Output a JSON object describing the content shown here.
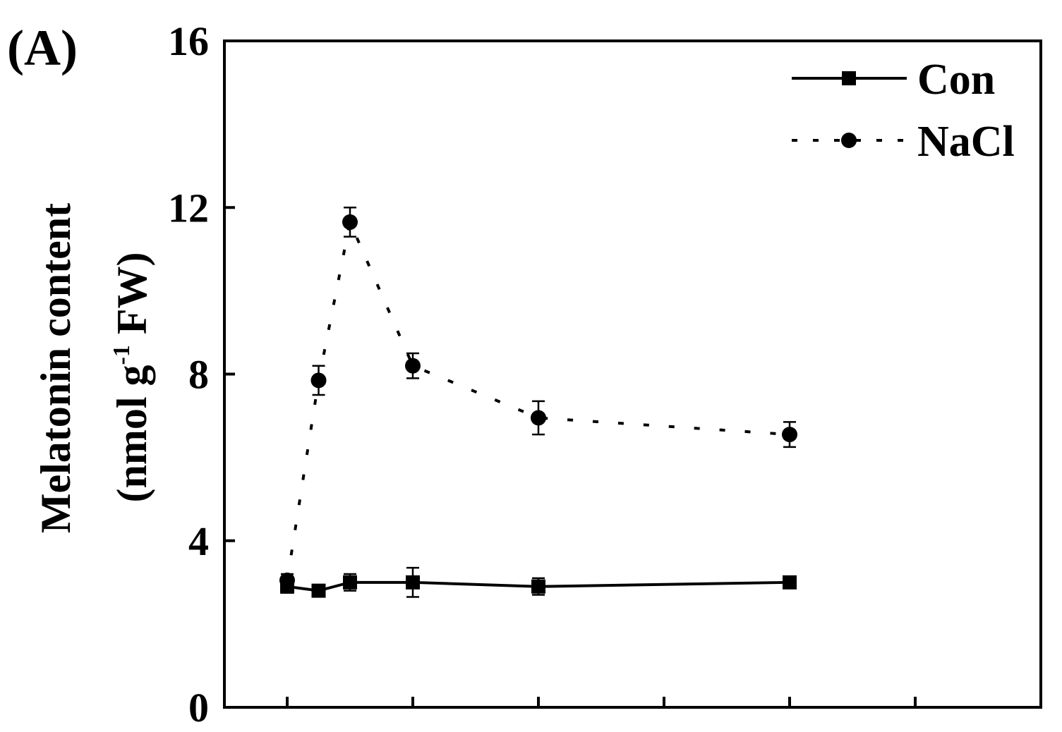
{
  "panel_label": "(A)",
  "chart_data": {
    "type": "line",
    "title": "",
    "xlabel": "",
    "ylabel_line1": "Melatonin content",
    "ylabel_line2_prefix": "(nmol g",
    "ylabel_line2_sup": "-1",
    "ylabel_line2_suffix": " FW)",
    "ylim": [
      0,
      16
    ],
    "yticks": [
      "0",
      "4",
      "8",
      "12",
      "16"
    ],
    "xlim": [
      -2,
      24
    ],
    "xticks": [
      0,
      4,
      8,
      12,
      16,
      20
    ],
    "xtick_labels": [],
    "grid": false,
    "legend_position": "top-right",
    "series": [
      {
        "name": "Con",
        "marker": "square",
        "line_style": "solid",
        "color": "#000000",
        "x": [
          0,
          1,
          2,
          4,
          8,
          16
        ],
        "values": [
          2.9,
          2.8,
          3.0,
          3.0,
          2.9,
          3.0
        ],
        "errors": [
          0.15,
          0.1,
          0.2,
          0.35,
          0.2,
          0.1
        ]
      },
      {
        "name": "NaCl",
        "marker": "circle",
        "line_style": "dotted",
        "color": "#000000",
        "x": [
          0,
          1,
          2,
          4,
          8,
          16
        ],
        "values": [
          3.05,
          7.85,
          11.65,
          8.2,
          6.95,
          6.55
        ],
        "errors": [
          0.15,
          0.35,
          0.35,
          0.3,
          0.4,
          0.3
        ]
      }
    ]
  }
}
